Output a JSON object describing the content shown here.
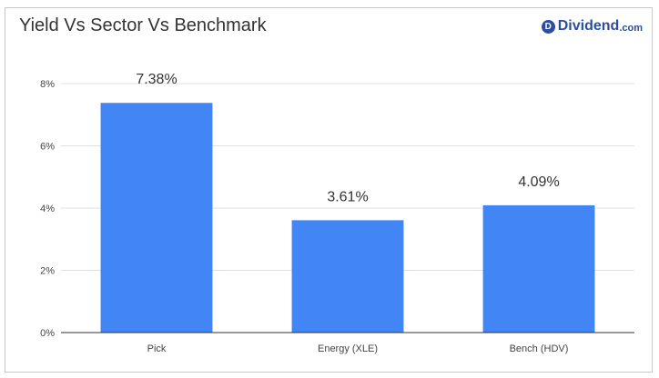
{
  "header": {
    "title": "Yield Vs Sector Vs Benchmark"
  },
  "logo": {
    "badge": "D",
    "name": "Dividend",
    "tld": ".com",
    "color": "#2b4ea3"
  },
  "chart_data": {
    "type": "bar",
    "categories": [
      "Pick",
      "Energy (XLE)",
      "Bench (HDV)"
    ],
    "values": [
      7.38,
      3.61,
      4.09
    ],
    "data_labels": [
      "7.38%",
      "3.61%",
      "4.09%"
    ],
    "ylim": [
      0,
      8
    ],
    "yticks": [
      0,
      2,
      4,
      6,
      8
    ],
    "ytick_labels": [
      "0%",
      "2%",
      "4%",
      "6%",
      "8%"
    ],
    "bar_color": "#4285f4",
    "grid": true,
    "title": "Yield Vs Sector Vs Benchmark",
    "xlabel": "",
    "ylabel": ""
  }
}
